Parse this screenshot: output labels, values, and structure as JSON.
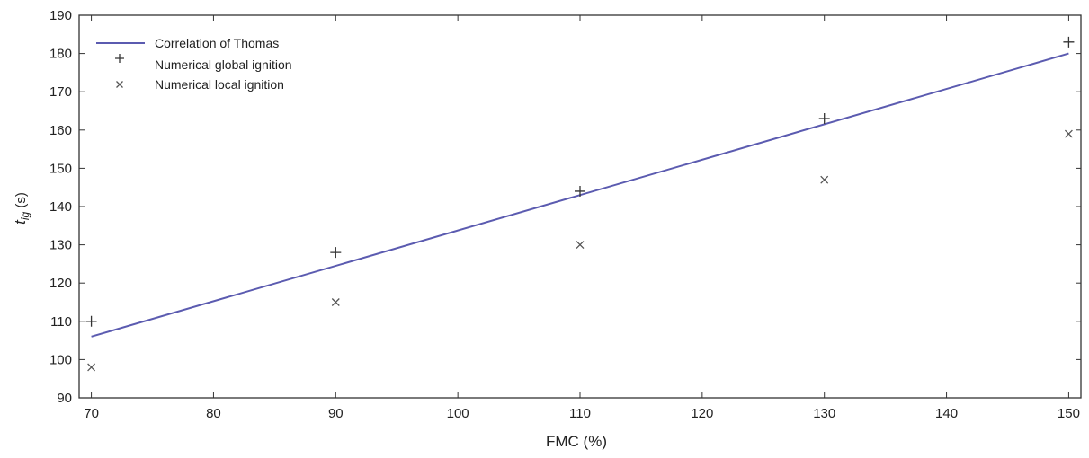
{
  "chart_data": {
    "type": "scatter",
    "xlabel": "FMC (%)",
    "ylabel": {
      "base": "t",
      "subscript": "ig",
      "suffix": " (s)"
    },
    "xlim": [
      69,
      151
    ],
    "ylim": [
      90,
      190
    ],
    "xticks": [
      70,
      80,
      90,
      100,
      110,
      120,
      130,
      140,
      150
    ],
    "yticks": [
      90,
      100,
      110,
      120,
      130,
      140,
      150,
      160,
      170,
      180,
      190
    ],
    "grid": false,
    "legend_position": "top-left",
    "series": [
      {
        "name": "Correlation of Thomas",
        "kind": "line",
        "color": "#5b5bb0",
        "x": [
          70,
          150
        ],
        "y": [
          106,
          180
        ]
      },
      {
        "name": "Numerical global ignition",
        "kind": "marker",
        "marker": "plus",
        "color": "#333333",
        "x": [
          70,
          90,
          110,
          130,
          150
        ],
        "y": [
          110,
          128,
          144,
          163,
          183
        ]
      },
      {
        "name": "Numerical local ignition",
        "kind": "marker",
        "marker": "cross",
        "color": "#555555",
        "x": [
          70,
          90,
          110,
          130,
          150
        ],
        "y": [
          98,
          115,
          130,
          147,
          159
        ]
      }
    ]
  }
}
